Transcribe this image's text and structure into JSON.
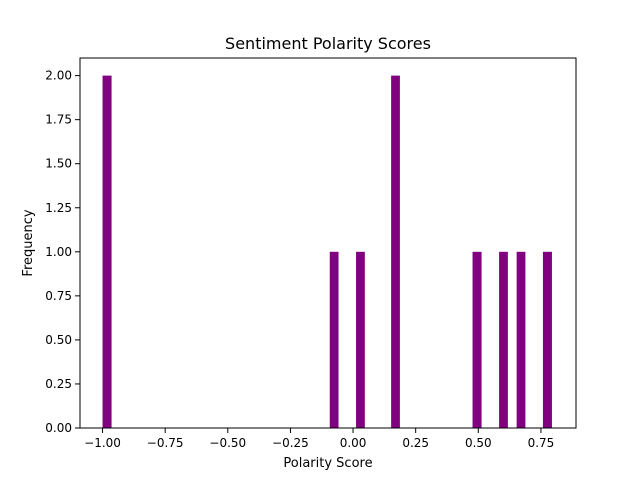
{
  "chart_data": {
    "type": "bar",
    "title": "Sentiment Polarity Scores",
    "xlabel": "Polarity Score",
    "ylabel": "Frequency",
    "xlim": [
      -1.09,
      0.89
    ],
    "ylim": [
      0,
      2.1
    ],
    "xticks": [
      -1.0,
      -0.75,
      -0.5,
      -0.25,
      0.0,
      0.25,
      0.5,
      0.75
    ],
    "xtick_labels": [
      "−1.00",
      "−0.75",
      "−0.50",
      "−0.25",
      "0.00",
      "0.25",
      "0.50",
      "0.75"
    ],
    "yticks": [
      0,
      0.25,
      0.5,
      0.75,
      1.0,
      1.25,
      1.5,
      1.75,
      2.0
    ],
    "ytick_labels": [
      "0.00",
      "0.25",
      "0.50",
      "0.75",
      "1.00",
      "1.25",
      "1.50",
      "1.75",
      "2.00"
    ],
    "bar_color": "#800080",
    "bins": [
      {
        "x0": -1.0,
        "x1": -0.964,
        "count": 2
      },
      {
        "x0": -0.093,
        "x1": -0.058,
        "count": 1
      },
      {
        "x0": 0.012,
        "x1": 0.047,
        "count": 1
      },
      {
        "x0": 0.152,
        "x1": 0.187,
        "count": 2
      },
      {
        "x0": 0.477,
        "x1": 0.513,
        "count": 1
      },
      {
        "x0": 0.583,
        "x1": 0.618,
        "count": 1
      },
      {
        "x0": 0.653,
        "x1": 0.688,
        "count": 1
      },
      {
        "x0": 0.758,
        "x1": 0.794,
        "count": 1
      }
    ],
    "grid": false,
    "legend": "none"
  }
}
